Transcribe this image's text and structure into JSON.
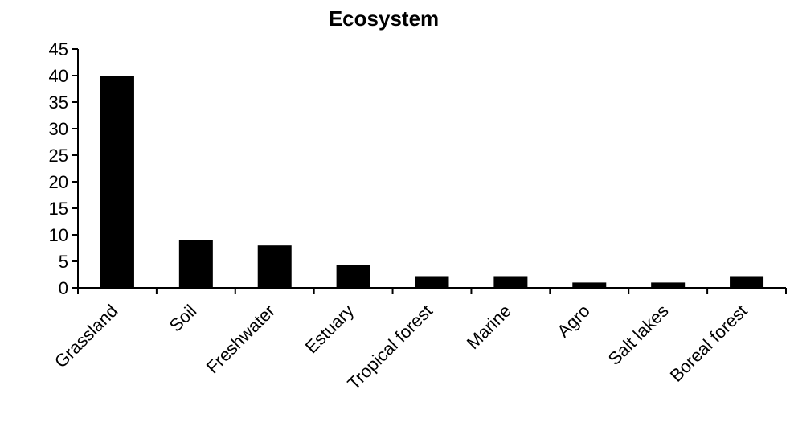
{
  "chart_data": {
    "type": "bar",
    "title": "Ecosystem",
    "xlabel": "",
    "ylabel": "",
    "categories": [
      "Grassland",
      "Soil",
      "Freshwater",
      "Estuary",
      "Tropical forest",
      "Marine",
      "Agro",
      "Salt lakes",
      "Boreal forest"
    ],
    "values": [
      40,
      9,
      8,
      4.3,
      2.2,
      2.2,
      1,
      1,
      2.2
    ],
    "ylim": [
      0,
      45
    ],
    "yticks": [
      0,
      5,
      10,
      15,
      20,
      25,
      30,
      35,
      40,
      45
    ],
    "bar_color": "#000000",
    "grid": false
  }
}
